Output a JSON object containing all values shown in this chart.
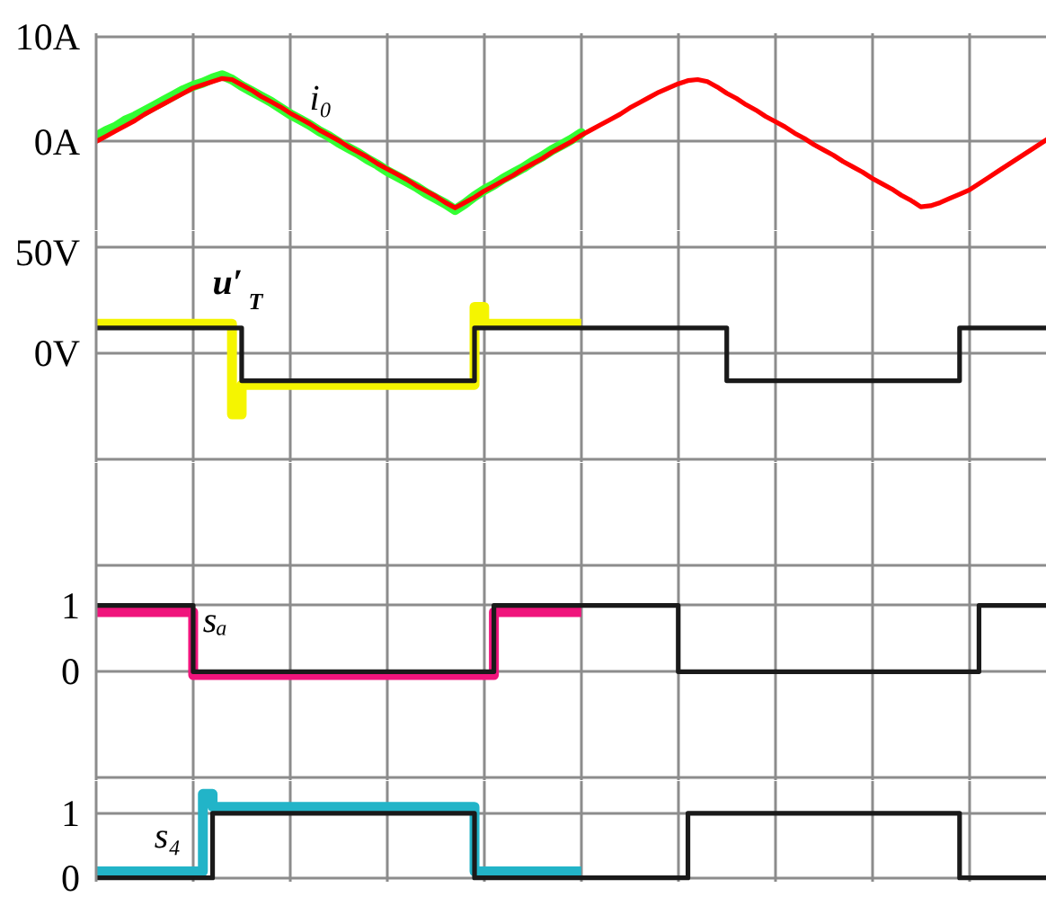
{
  "chart_data": [
    {
      "type": "line",
      "categories": [
        null,
        null,
        null,
        null,
        null,
        null,
        null,
        null,
        null,
        null,
        null,
        null,
        null,
        null,
        null,
        null,
        null,
        null,
        null,
        null,
        null,
        null,
        null,
        null,
        null,
        null,
        null,
        null,
        null,
        null,
        null,
        null,
        null,
        null,
        null,
        null,
        null,
        null,
        null,
        null,
        null,
        null,
        null,
        null,
        null,
        null,
        null,
        null,
        null,
        null,
        null,
        null,
        null,
        null,
        null,
        null,
        null,
        null,
        null,
        null,
        null,
        null,
        null,
        null,
        null,
        null,
        null,
        null,
        null,
        null,
        null,
        null,
        null,
        null,
        null,
        null,
        null,
        null,
        null,
        null,
        null,
        null,
        null,
        null,
        null,
        null,
        null,
        null,
        null,
        null,
        null,
        null,
        null,
        null,
        null,
        null,
        null,
        null,
        null
      ],
      "series": [
        {
          "color": "#33ff33",
          "values": [
            0.5,
            1.0,
            1.4,
            2.0,
            2.4,
            2.9,
            3.4,
            3.9,
            4.4,
            4.9,
            5.3,
            5.6,
            6.0,
            6.3,
            5.9,
            5.3,
            4.8,
            4.3,
            3.8,
            3.2,
            2.6,
            2.1,
            1.6,
            1.0,
            0.5,
            -0.1,
            -0.6,
            -1.1,
            -1.7,
            -2.2,
            -2.8,
            -3.3,
            -3.8,
            -4.3,
            -4.9,
            -5.4,
            -5.9,
            -6.5,
            -5.9,
            -5.2,
            -4.6,
            -4.1,
            -3.5,
            -3.0,
            -2.5,
            -1.9,
            -1.4,
            -0.8,
            -0.3,
            0.2,
            0.8,
            null,
            null,
            null,
            null,
            null,
            null,
            null,
            null,
            null,
            null,
            null,
            null,
            null,
            null,
            null,
            null,
            null,
            null,
            null,
            null,
            null,
            null,
            null,
            null,
            null,
            null,
            null,
            null,
            null,
            null,
            null,
            null,
            null,
            null,
            null,
            null,
            null,
            null,
            null,
            null,
            null,
            null,
            null,
            null,
            null,
            null,
            null,
            null
          ]
        },
        {
          "name": "i₀",
          "color": "#ff0000",
          "values": [
            0.0,
            0.5,
            1.0,
            1.5,
            2.0,
            2.6,
            3.1,
            3.6,
            4.1,
            4.6,
            5.1,
            5.4,
            5.7,
            6.0,
            5.9,
            5.4,
            4.9,
            4.3,
            3.8,
            3.3,
            2.7,
            2.2,
            1.7,
            1.1,
            0.6,
            0.1,
            -0.5,
            -1.0,
            -1.5,
            -2.1,
            -2.6,
            -3.1,
            -3.6,
            -4.2,
            -4.7,
            -5.2,
            -5.8,
            -6.3,
            -5.8,
            -5.3,
            -4.7,
            -4.2,
            -3.7,
            -3.2,
            -2.6,
            -2.1,
            -1.6,
            -1.0,
            -0.5,
            0.0,
            0.6,
            1.1,
            1.6,
            2.1,
            2.6,
            3.2,
            3.7,
            4.2,
            4.7,
            5.1,
            5.5,
            5.8,
            5.9,
            5.7,
            5.2,
            4.6,
            4.1,
            3.5,
            3.0,
            2.4,
            1.9,
            1.4,
            0.8,
            0.3,
            -0.3,
            -0.8,
            -1.3,
            -1.9,
            -2.4,
            -2.9,
            -3.5,
            -4.0,
            -4.5,
            -5.1,
            -5.6,
            -6.2,
            -6.1,
            -5.8,
            -5.4,
            -5.0,
            -4.6,
            -4.0,
            -3.4,
            -2.8,
            -2.2,
            -1.6,
            -1.0,
            -0.4,
            0.2
          ]
        }
      ],
      "ylim": [
        -8.5,
        10.3
      ],
      "yticks": [
        {
          "value": 10,
          "label": "10A"
        },
        {
          "value": 0,
          "label": "0A"
        }
      ],
      "grid": true,
      "tick_labels": "y"
    },
    {
      "type": "step",
      "categories": [
        null,
        null,
        null,
        null,
        null,
        null,
        null,
        null,
        null,
        null,
        null,
        null,
        null,
        null,
        null,
        null,
        null,
        null,
        null,
        null,
        null,
        null,
        null,
        null,
        null,
        null,
        null,
        null,
        null,
        null,
        null,
        null,
        null,
        null,
        null,
        null,
        null,
        null,
        null,
        null,
        null,
        null,
        null,
        null,
        null,
        null,
        null,
        null,
        null,
        null,
        null,
        null,
        null,
        null,
        null,
        null,
        null,
        null,
        null,
        null,
        null,
        null,
        null,
        null,
        null,
        null,
        null,
        null,
        null,
        null,
        null,
        null,
        null,
        null,
        null,
        null,
        null,
        null,
        null,
        null,
        null,
        null,
        null,
        null,
        null,
        null,
        null,
        null,
        null,
        null,
        null,
        null,
        null,
        null,
        null,
        null,
        null,
        null,
        null
      ],
      "series": [
        {
          "color": "#f5f500",
          "values": [
            14,
            14,
            14,
            14,
            14,
            14,
            14,
            14,
            14,
            14,
            14,
            14,
            14,
            14,
            -29,
            -15,
            -15,
            -15,
            -15,
            -15,
            -15,
            -15,
            -15,
            -15,
            -15,
            -15,
            -15,
            -15,
            -15,
            -15,
            -15,
            -15,
            -15,
            -15,
            -15,
            -15,
            -15,
            -15,
            -15,
            22,
            14,
            14,
            14,
            14,
            14,
            14,
            14,
            14,
            14,
            14,
            14,
            null,
            null,
            null,
            null,
            null,
            null,
            null,
            null,
            null,
            null,
            null,
            null,
            null,
            null,
            null,
            null,
            null,
            null,
            null,
            null,
            null,
            null,
            null,
            null,
            null,
            null,
            null,
            null,
            null,
            null,
            null,
            null,
            null,
            null,
            null,
            null,
            null,
            null,
            null,
            null,
            null,
            null,
            null,
            null,
            null,
            null,
            null,
            null
          ]
        },
        {
          "name": "u′$_{T}$",
          "color": "#1a1a1a",
          "values": [
            12,
            12,
            12,
            12,
            12,
            12,
            12,
            12,
            12,
            12,
            12,
            12,
            12,
            12,
            12,
            -13,
            -13,
            -13,
            -13,
            -13,
            -13,
            -13,
            -13,
            -13,
            -13,
            -13,
            -13,
            -13,
            -13,
            -13,
            -13,
            -13,
            -13,
            -13,
            -13,
            -13,
            -13,
            -13,
            -13,
            12,
            12,
            12,
            12,
            12,
            12,
            12,
            12,
            12,
            12,
            12,
            12,
            12,
            12,
            12,
            12,
            12,
            12,
            12,
            12,
            12,
            12,
            12,
            12,
            12,
            12,
            -13,
            -13,
            -13,
            -13,
            -13,
            -13,
            -13,
            -13,
            -13,
            -13,
            -13,
            -13,
            -13,
            -13,
            -13,
            -13,
            -13,
            -13,
            -13,
            -13,
            -13,
            -13,
            -13,
            -13,
            12,
            12,
            12,
            12,
            12,
            12,
            12,
            12,
            12,
            12
          ]
        }
      ],
      "ylim": [
        -52,
        58
      ],
      "yticks": [
        {
          "value": 50,
          "label": "50V"
        },
        {
          "value": 0,
          "label": "0V"
        },
        {
          "value": -50,
          "label": null
        }
      ],
      "grid": true,
      "tick_labels": "y"
    },
    {
      "type": "step",
      "categories": [
        null,
        null,
        null,
        null,
        null,
        null,
        null,
        null,
        null,
        null,
        null,
        null,
        null,
        null,
        null,
        null,
        null,
        null,
        null,
        null,
        null,
        null,
        null,
        null,
        null,
        null,
        null,
        null,
        null,
        null,
        null,
        null,
        null,
        null,
        null,
        null,
        null,
        null,
        null,
        null,
        null,
        null,
        null,
        null,
        null,
        null,
        null,
        null,
        null,
        null,
        null,
        null,
        null,
        null,
        null,
        null,
        null,
        null,
        null,
        null,
        null,
        null,
        null,
        null,
        null,
        null,
        null,
        null,
        null,
        null,
        null,
        null,
        null,
        null,
        null,
        null,
        null,
        null,
        null,
        null,
        null,
        null,
        null,
        null,
        null,
        null,
        null,
        null,
        null,
        null,
        null,
        null,
        null,
        null,
        null,
        null,
        null,
        null,
        null
      ],
      "series": [
        {
          "color": "#f0147c",
          "values": [
            0.9,
            0.9,
            0.9,
            0.9,
            0.9,
            0.9,
            0.9,
            0.9,
            0.9,
            0.9,
            -0.05,
            -0.05,
            -0.05,
            -0.05,
            -0.05,
            -0.05,
            -0.05,
            -0.05,
            -0.05,
            -0.05,
            -0.05,
            -0.05,
            -0.05,
            -0.05,
            -0.05,
            -0.05,
            -0.05,
            -0.05,
            -0.05,
            -0.05,
            -0.05,
            -0.05,
            -0.05,
            -0.05,
            -0.05,
            -0.05,
            -0.05,
            -0.05,
            -0.05,
            -0.05,
            -0.05,
            0.9,
            0.9,
            0.9,
            0.9,
            0.9,
            0.9,
            0.9,
            0.9,
            0.9,
            0.9,
            null,
            null,
            null,
            null,
            null,
            null,
            null,
            null,
            null,
            null,
            null,
            null,
            null,
            null,
            null,
            null,
            null,
            null,
            null,
            null,
            null,
            null,
            null,
            null,
            null,
            null,
            null,
            null,
            null,
            null,
            null,
            null,
            null,
            null,
            null,
            null,
            null,
            null,
            null,
            null,
            null,
            null,
            null,
            null,
            null,
            null,
            null,
            null
          ]
        },
        {
          "name": "sₐ",
          "color": "#1a1a1a",
          "values": [
            1,
            1,
            1,
            1,
            1,
            1,
            1,
            1,
            1,
            1,
            0,
            0,
            0,
            0,
            0,
            0,
            0,
            0,
            0,
            0,
            0,
            0,
            0,
            0,
            0,
            0,
            0,
            0,
            0,
            0,
            0,
            0,
            0,
            0,
            0,
            0,
            0,
            0,
            0,
            0,
            0,
            1,
            1,
            1,
            1,
            1,
            1,
            1,
            1,
            1,
            1,
            1,
            1,
            1,
            1,
            1,
            1,
            1,
            1,
            1,
            0,
            0,
            0,
            0,
            0,
            0,
            0,
            0,
            0,
            0,
            0,
            0,
            0,
            0,
            0,
            0,
            0,
            0,
            0,
            0,
            0,
            0,
            0,
            0,
            0,
            0,
            0,
            0,
            0,
            0,
            0,
            1,
            1,
            1,
            1,
            1,
            1,
            1,
            1
          ]
        }
      ],
      "ylim": [
        -1.65,
        3.15
      ],
      "yticks": [
        {
          "value": 1.6,
          "label": null
        },
        1,
        0,
        {
          "value": -1.6,
          "label": null
        }
      ],
      "grid": true,
      "tick_labels": "y"
    },
    {
      "type": "step",
      "categories": [
        null,
        null,
        null,
        null,
        null,
        null,
        null,
        null,
        null,
        null,
        null,
        null,
        null,
        null,
        null,
        null,
        null,
        null,
        null,
        null,
        null,
        null,
        null,
        null,
        null,
        null,
        null,
        null,
        null,
        null,
        null,
        null,
        null,
        null,
        null,
        null,
        null,
        null,
        null,
        null,
        null,
        null,
        null,
        null,
        null,
        null,
        null,
        null,
        null,
        null,
        null,
        null,
        null,
        null,
        null,
        null,
        null,
        null,
        null,
        null,
        null,
        null,
        null,
        null,
        null,
        null,
        null,
        null,
        null,
        null,
        null,
        null,
        null,
        null,
        null,
        null,
        null,
        null,
        null,
        null,
        null,
        null,
        null,
        null,
        null,
        null,
        null,
        null,
        null,
        null,
        null,
        null,
        null,
        null,
        null,
        null,
        null,
        null,
        null
      ],
      "series": [
        {
          "color": "#22b4c8",
          "values": [
            0.1,
            0.1,
            0.1,
            0.1,
            0.1,
            0.1,
            0.1,
            0.1,
            0.1,
            0.1,
            0.1,
            1.3,
            1.1,
            1.1,
            1.1,
            1.1,
            1.1,
            1.1,
            1.1,
            1.1,
            1.1,
            1.1,
            1.1,
            1.1,
            1.1,
            1.1,
            1.1,
            1.1,
            1.1,
            1.1,
            1.1,
            1.1,
            1.1,
            1.1,
            1.1,
            1.1,
            1.1,
            1.1,
            1.1,
            0.1,
            0.1,
            0.1,
            0.1,
            0.1,
            0.1,
            0.1,
            0.1,
            0.1,
            0.1,
            0.1,
            0.1,
            null,
            null,
            null,
            null,
            null,
            null,
            null,
            null,
            null,
            null,
            null,
            null,
            null,
            null,
            null,
            null,
            null,
            null,
            null,
            null,
            null,
            null,
            null,
            null,
            null,
            null,
            null,
            null,
            null,
            null,
            null,
            null,
            null,
            null,
            null,
            null,
            null,
            null,
            null,
            null,
            null,
            null,
            null,
            null,
            null,
            null,
            null,
            null
          ]
        },
        {
          "name": "s₄",
          "color": "#1a1a1a",
          "values": [
            0,
            0,
            0,
            0,
            0,
            0,
            0,
            0,
            0,
            0,
            0,
            0,
            1,
            1,
            1,
            1,
            1,
            1,
            1,
            1,
            1,
            1,
            1,
            1,
            1,
            1,
            1,
            1,
            1,
            1,
            1,
            1,
            1,
            1,
            1,
            1,
            1,
            1,
            1,
            0,
            0,
            0,
            0,
            0,
            0,
            0,
            0,
            0,
            0,
            0,
            0,
            0,
            0,
            0,
            0,
            0,
            0,
            0,
            0,
            0,
            0,
            1,
            1,
            1,
            1,
            1,
            1,
            1,
            1,
            1,
            1,
            1,
            1,
            1,
            1,
            1,
            1,
            1,
            1,
            1,
            1,
            1,
            1,
            1,
            1,
            1,
            1,
            1,
            1,
            0,
            0,
            0,
            0,
            0,
            0,
            0,
            0,
            0,
            0
          ]
        }
      ],
      "ylim": [
        -0.06,
        1.5
      ],
      "yticks": [
        1,
        0
      ],
      "grid": true,
      "tick_labels": "y"
    }
  ]
}
